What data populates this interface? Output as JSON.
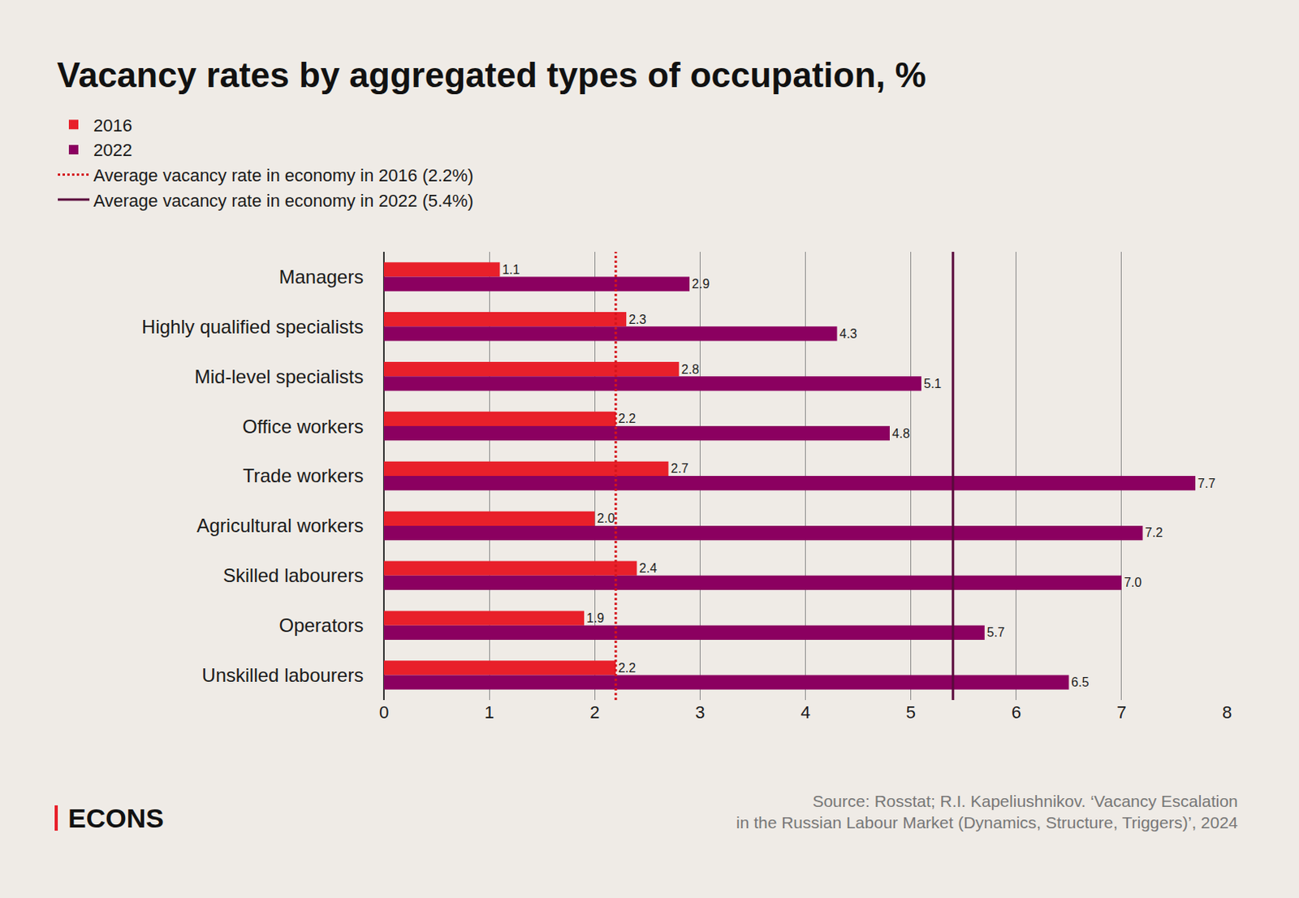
{
  "chart_data": {
    "type": "bar",
    "orientation": "horizontal",
    "title": "Vacancy rates by aggregated types of occupation, %",
    "categories": [
      "Managers",
      "Highly qualified specialists",
      "Mid-level specialists",
      "Office workers",
      "Trade workers",
      "Agricultural workers",
      "Skilled labourers",
      "Operators",
      "Unskilled labourers"
    ],
    "series": [
      {
        "name": "2016",
        "color": "#e8202a",
        "values": [
          1.1,
          2.3,
          2.8,
          2.2,
          2.7,
          2.0,
          2.4,
          1.9,
          2.2
        ],
        "value_labels": [
          "1.1",
          "2.3",
          "2.8",
          "2.2",
          "2.7",
          "2.0",
          "2.4",
          "1.9",
          "2.2"
        ]
      },
      {
        "name": "2022",
        "color": "#8b0060",
        "values": [
          2.9,
          4.3,
          5.1,
          4.8,
          7.7,
          7.2,
          7.0,
          5.7,
          6.5
        ],
        "value_labels": [
          "2.9",
          "4.3",
          "5.1",
          "4.8",
          "7.7",
          "7.2",
          "7.0",
          "5.7",
          "6.5"
        ]
      }
    ],
    "reference_lines": [
      {
        "name": "Average vacancy rate in economy in 2016 (2.2%)",
        "value": 2.2,
        "color": "#d4141c",
        "line_style": "dotted"
      },
      {
        "name": "Average vacancy rate in economy in 2022 (5.4%)",
        "value": 5.4,
        "color": "#5a0a3c",
        "line_style": "solid"
      }
    ],
    "xlim": [
      0,
      8
    ],
    "xticks": [
      0,
      1,
      2,
      3,
      4,
      5,
      6,
      7,
      8
    ],
    "grid": true,
    "data_labels": true,
    "legend": "top",
    "source": [
      "Source: Rosstat; R.I. Kapeliushnikov. ‘Vacancy Escalation",
      "in the Russian Labour Market (Dynamics, Structure, Triggers)’, 2024"
    ],
    "logo": "ECONS"
  }
}
